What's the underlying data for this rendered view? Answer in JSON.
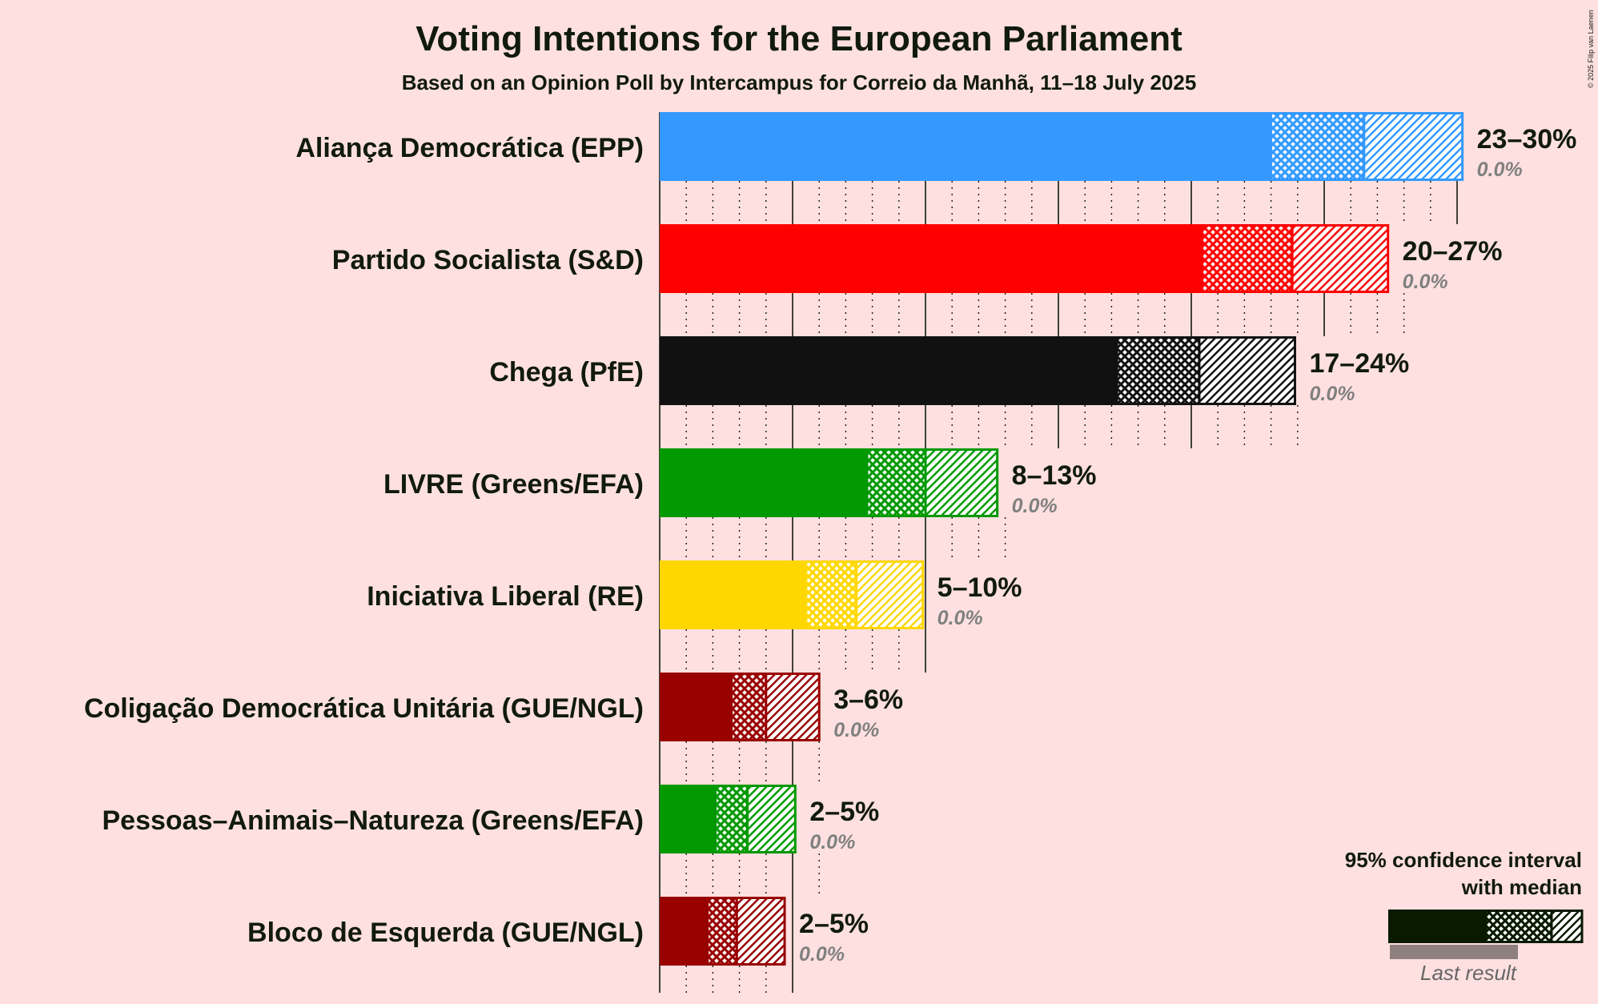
{
  "chart_data": {
    "type": "bar",
    "orientation": "horizontal",
    "title": "Voting Intentions for the European Parliament",
    "subtitle": "Based on an Opinion Poll by Intercampus for Correio da Manhã, 11–18 July 2025",
    "copyright": "© 2025 Filip van Laenen",
    "xlim": [
      0,
      30
    ],
    "grid": true,
    "series": [
      {
        "name": "Aliança Democrática (EPP)",
        "color": "#3399FF",
        "low": 23,
        "median": 26.5,
        "high": 30.2,
        "range_label": "23–30%",
        "last_result": "0.0%"
      },
      {
        "name": "Partido Socialista (S&D)",
        "color": "#FF0000",
        "low": 20.4,
        "median": 23.8,
        "high": 27.4,
        "range_label": "20–27%",
        "last_result": "0.0%"
      },
      {
        "name": "Chega (PfE)",
        "color": "#111111",
        "low": 17.2,
        "median": 20.3,
        "high": 23.9,
        "range_label": "17–24%",
        "last_result": "0.0%"
      },
      {
        "name": "LIVRE (Greens/EFA)",
        "color": "#009900",
        "low": 7.8,
        "median": 10,
        "high": 12.7,
        "range_label": "8–13%",
        "last_result": "0.0%"
      },
      {
        "name": "Iniciativa Liberal (RE)",
        "color": "#FFD700",
        "low": 5.5,
        "median": 7.4,
        "high": 9.9,
        "range_label": "5–10%",
        "last_result": "0.0%"
      },
      {
        "name": "Coligação Democrática Unitária (GUE/NGL)",
        "color": "#990000",
        "low": 2.7,
        "median": 4,
        "high": 6,
        "range_label": "3–6%",
        "last_result": "0.0%"
      },
      {
        "name": "Pessoas–Animais–Natureza (Greens/EFA)",
        "color": "#009900",
        "low": 2.1,
        "median": 3.3,
        "high": 5.1,
        "range_label": "2–5%",
        "last_result": "0.0%"
      },
      {
        "name": "Bloco de Esquerda (GUE/NGL)",
        "color": "#990000",
        "low": 1.8,
        "median": 2.9,
        "high": 4.7,
        "range_label": "2–5%",
        "last_result": "0.0%"
      }
    ],
    "legend": {
      "position": "bottom-right",
      "line1": "95% confidence interval",
      "line2": "with median",
      "last_result_label": "Last result",
      "color": "#0a1a00"
    }
  }
}
